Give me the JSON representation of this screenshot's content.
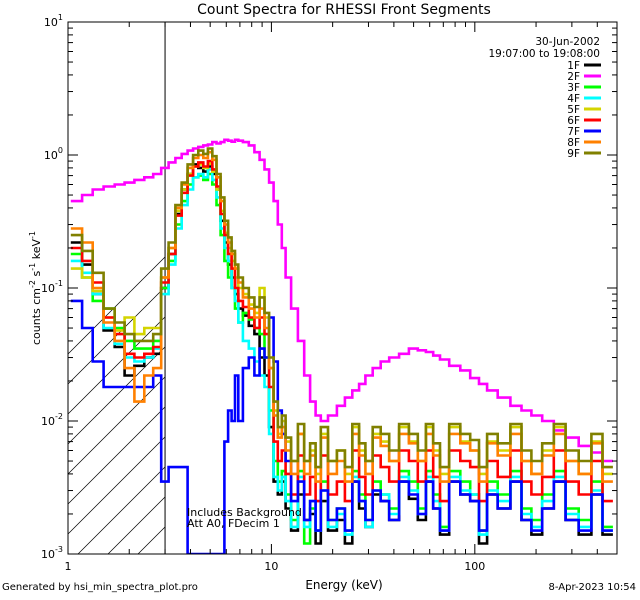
{
  "chart_data": {
    "type": "line",
    "title": "Count Spectra for RHESSI Front Segments",
    "xlabel": "Energy (keV)",
    "ylabel_parts": [
      "counts cm",
      "-2",
      " s",
      "-1",
      " keV",
      "-1"
    ],
    "x_scale": "log",
    "y_scale": "log",
    "xlim": [
      1,
      500
    ],
    "ylim": [
      0.001,
      10
    ],
    "x_ticks": [
      {
        "value": 1,
        "label": "1"
      },
      {
        "value": 10,
        "label": "10"
      },
      {
        "value": 100,
        "label": "100"
      }
    ],
    "y_ticks": [
      {
        "value": 10,
        "base": "10",
        "exp": "1"
      },
      {
        "value": 1,
        "base": "10",
        "exp": "0"
      },
      {
        "value": 0.1,
        "base": "10",
        "exp": "-1"
      },
      {
        "value": 0.01,
        "base": "10",
        "exp": "-2"
      },
      {
        "value": 0.001,
        "base": "10",
        "exp": "-3"
      }
    ],
    "date": "30-Jun-2002",
    "time_range": "19:07:00 to 19:08:00",
    "annotation_lines": [
      "Includes Background",
      "Att A0, FDecim 1"
    ],
    "shaded_region_kev": [
      1,
      3
    ],
    "energies": [
      1.1,
      1.25,
      1.4,
      1.6,
      1.8,
      2.0,
      2.25,
      2.5,
      2.75,
      3.0,
      3.25,
      3.5,
      3.75,
      4.0,
      4.25,
      4.5,
      4.75,
      5.0,
      5.25,
      5.5,
      5.75,
      6.0,
      6.25,
      6.5,
      6.75,
      7.0,
      7.5,
      8.0,
      8.5,
      9.0,
      9.5,
      10.0,
      10.5,
      11.0,
      11.5,
      12.0,
      13.0,
      14.0,
      15.0,
      16.0,
      17.0,
      18.0,
      20.0,
      22.0,
      24.0,
      26.0,
      28.0,
      30.0,
      33.0,
      36.0,
      40.0,
      45.0,
      50.0,
      55.0,
      60.0,
      65.0,
      70.0,
      80.0,
      90.0,
      100.0,
      110.0,
      120.0,
      140.0,
      160.0,
      180.0,
      200.0,
      230.0,
      260.0,
      300.0,
      350.0,
      400.0,
      450.0
    ],
    "series": [
      {
        "name": "1F",
        "color": "#000000",
        "values": [
          0.22,
          0.15,
          0.09,
          0.048,
          0.036,
          0.022,
          0.026,
          0.03,
          0.032,
          0.1,
          0.18,
          0.36,
          0.55,
          0.72,
          0.85,
          0.8,
          0.75,
          0.82,
          0.72,
          0.55,
          0.32,
          0.22,
          0.15,
          0.12,
          0.09,
          0.07,
          0.062,
          0.052,
          0.045,
          0.03,
          0.022,
          0.009,
          0.0035,
          0.0028,
          0.0035,
          0.0022,
          0.0015,
          0.0028,
          0.0018,
          0.002,
          0.0012,
          0.0025,
          0.0015,
          0.0018,
          0.0012,
          0.0035,
          0.0022,
          0.0016,
          0.0028,
          0.0025,
          0.0018,
          0.0035,
          0.0026,
          0.0018,
          0.0035,
          0.0022,
          0.0014,
          0.0035,
          0.0028,
          0.0025,
          0.0012,
          0.0028,
          0.0022,
          0.0035,
          0.0018,
          0.0014,
          0.0022,
          0.0035,
          0.0018,
          0.0014,
          0.0028,
          0.0014
        ]
      },
      {
        "name": "2F",
        "color": "#ff00ff",
        "values": [
          0.45,
          0.5,
          0.55,
          0.58,
          0.6,
          0.62,
          0.65,
          0.68,
          0.72,
          0.8,
          0.88,
          0.95,
          1.02,
          1.08,
          1.12,
          1.15,
          1.18,
          1.2,
          1.25,
          1.22,
          1.25,
          1.3,
          1.28,
          1.26,
          1.3,
          1.28,
          1.25,
          1.18,
          1.05,
          0.92,
          0.78,
          0.62,
          0.45,
          0.3,
          0.2,
          0.12,
          0.07,
          0.04,
          0.022,
          0.014,
          0.011,
          0.01,
          0.011,
          0.013,
          0.015,
          0.017,
          0.019,
          0.022,
          0.025,
          0.028,
          0.03,
          0.032,
          0.035,
          0.034,
          0.033,
          0.031,
          0.029,
          0.026,
          0.024,
          0.021,
          0.019,
          0.017,
          0.015,
          0.013,
          0.012,
          0.011,
          0.01,
          0.0085,
          0.0075,
          0.0065,
          0.0058,
          0.005
        ]
      },
      {
        "name": "3F",
        "color": "#00ff00",
        "values": [
          0.18,
          0.12,
          0.08,
          0.07,
          0.05,
          0.04,
          0.035,
          0.035,
          0.04,
          0.1,
          0.16,
          0.3,
          0.45,
          0.6,
          0.68,
          0.7,
          0.65,
          0.72,
          0.6,
          0.42,
          0.25,
          0.16,
          0.12,
          0.1,
          0.07,
          0.055,
          0.065,
          0.058,
          0.05,
          0.045,
          0.03,
          0.012,
          0.005,
          0.0035,
          0.0042,
          0.0028,
          0.0018,
          0.0042,
          0.0012,
          0.0022,
          0.0015,
          0.0035,
          0.0018,
          0.0022,
          0.0015,
          0.0042,
          0.0028,
          0.0018,
          0.0035,
          0.0028,
          0.0022,
          0.0042,
          0.0035,
          0.0022,
          0.0042,
          0.0028,
          0.0016,
          0.0042,
          0.0035,
          0.0028,
          0.0015,
          0.0035,
          0.0028,
          0.0042,
          0.0022,
          0.0018,
          0.0028,
          0.0042,
          0.0022,
          0.0018,
          0.0035,
          0.0016
        ]
      },
      {
        "name": "4F",
        "color": "#00ffff",
        "values": [
          0.16,
          0.13,
          0.09,
          0.05,
          0.038,
          0.03,
          0.028,
          0.03,
          0.035,
          0.09,
          0.15,
          0.28,
          0.42,
          0.55,
          0.68,
          0.72,
          0.68,
          0.78,
          0.65,
          0.48,
          0.28,
          0.2,
          0.16,
          0.1,
          0.08,
          0.055,
          0.04,
          0.035,
          0.028,
          0.022,
          0.018,
          0.008,
          0.0038,
          0.003,
          0.0038,
          0.0025,
          0.0016,
          0.0038,
          0.0016,
          0.0025,
          0.0015,
          0.003,
          0.0016,
          0.002,
          0.0014,
          0.0038,
          0.0025,
          0.0016,
          0.003,
          0.0028,
          0.002,
          0.0038,
          0.003,
          0.002,
          0.0038,
          0.0025,
          0.0015,
          0.0038,
          0.003,
          0.0028,
          0.0014,
          0.003,
          0.0025,
          0.0038,
          0.002,
          0.0016,
          0.0025,
          0.0038,
          0.002,
          0.0016,
          0.003,
          0.0015
        ]
      },
      {
        "name": "5F",
        "color": "#d4d400",
        "values": [
          0.14,
          0.12,
          0.095,
          0.06,
          0.048,
          0.06,
          0.045,
          0.05,
          0.05,
          0.12,
          0.2,
          0.38,
          0.55,
          0.72,
          0.82,
          0.85,
          0.8,
          0.86,
          0.75,
          0.55,
          0.38,
          0.26,
          0.2,
          0.16,
          0.12,
          0.1,
          0.09,
          0.075,
          0.065,
          0.1,
          0.06,
          0.025,
          0.012,
          0.008,
          0.01,
          0.007,
          0.005,
          0.008,
          0.005,
          0.006,
          0.004,
          0.008,
          0.005,
          0.006,
          0.004,
          0.009,
          0.006,
          0.005,
          0.008,
          0.007,
          0.005,
          0.009,
          0.007,
          0.005,
          0.009,
          0.006,
          0.004,
          0.009,
          0.007,
          0.006,
          0.004,
          0.007,
          0.006,
          0.009,
          0.005,
          0.004,
          0.006,
          0.009,
          0.005,
          0.004,
          0.007,
          0.004
        ]
      },
      {
        "name": "6F",
        "color": "#ff0000",
        "values": [
          0.2,
          0.16,
          0.11,
          0.06,
          0.045,
          0.032,
          0.03,
          0.032,
          0.036,
          0.11,
          0.18,
          0.35,
          0.52,
          0.7,
          0.82,
          0.88,
          0.82,
          0.9,
          0.78,
          0.58,
          0.36,
          0.25,
          0.18,
          0.14,
          0.1,
          0.08,
          0.072,
          0.06,
          0.05,
          0.06,
          0.045,
          0.018,
          0.007,
          0.005,
          0.006,
          0.004,
          0.0028,
          0.0055,
          0.0028,
          0.0038,
          0.0025,
          0.0055,
          0.0028,
          0.0035,
          0.0025,
          0.006,
          0.0038,
          0.0028,
          0.0055,
          0.0045,
          0.0035,
          0.006,
          0.005,
          0.0035,
          0.006,
          0.0038,
          0.0025,
          0.006,
          0.005,
          0.0045,
          0.0025,
          0.005,
          0.0038,
          0.006,
          0.0035,
          0.0028,
          0.0038,
          0.006,
          0.0035,
          0.0028,
          0.005,
          0.0025
        ]
      },
      {
        "name": "7F",
        "color": "#0000ff",
        "values": [
          0.08,
          0.05,
          0.028,
          0.018,
          0.018,
          0.018,
          0.018,
          0.018,
          0.022,
          0.0035,
          0.0045,
          0.0045,
          0.0045,
          0.001,
          0.001,
          0.001,
          0.001,
          0.001,
          0.001,
          0.001,
          0.001,
          0.007,
          0.012,
          0.01,
          0.022,
          0.01,
          0.025,
          0.03,
          0.022,
          0.035,
          0.03,
          0.06,
          0.028,
          0.012,
          0.008,
          0.005,
          0.0025,
          0.0035,
          0.0018,
          0.0025,
          0.0015,
          0.003,
          0.0018,
          0.0022,
          0.0015,
          0.0035,
          0.0025,
          0.0018,
          0.003,
          0.0025,
          0.0018,
          0.0035,
          0.0028,
          0.002,
          0.0035,
          0.0022,
          0.0015,
          0.0035,
          0.0028,
          0.0025,
          0.0015,
          0.0028,
          0.0022,
          0.0035,
          0.0018,
          0.0015,
          0.0022,
          0.0035,
          0.0018,
          0.0015,
          0.0028,
          0.0015
        ]
      },
      {
        "name": "8F",
        "color": "#ff8000",
        "values": [
          0.28,
          0.22,
          0.1,
          0.055,
          0.04,
          0.025,
          0.014,
          0.022,
          0.025,
          0.12,
          0.2,
          0.4,
          0.6,
          0.8,
          0.95,
          1.0,
          0.95,
          1.05,
          0.92,
          0.68,
          0.45,
          0.3,
          0.22,
          0.18,
          0.14,
          0.11,
          0.085,
          0.07,
          0.06,
          0.07,
          0.05,
          0.025,
          0.011,
          0.0075,
          0.009,
          0.006,
          0.004,
          0.008,
          0.004,
          0.0055,
          0.0035,
          0.0075,
          0.004,
          0.005,
          0.0035,
          0.008,
          0.0055,
          0.004,
          0.0075,
          0.0065,
          0.005,
          0.008,
          0.0068,
          0.005,
          0.008,
          0.0055,
          0.0035,
          0.008,
          0.0068,
          0.006,
          0.0035,
          0.0068,
          0.0055,
          0.008,
          0.005,
          0.004,
          0.0055,
          0.008,
          0.005,
          0.004,
          0.0068,
          0.0035
        ]
      },
      {
        "name": "9F",
        "color": "#808000",
        "values": [
          0.25,
          0.19,
          0.13,
          0.07,
          0.055,
          0.045,
          0.04,
          0.04,
          0.045,
          0.14,
          0.22,
          0.42,
          0.62,
          0.85,
          1.0,
          1.08,
          1.02,
          1.12,
          0.98,
          0.72,
          0.48,
          0.32,
          0.24,
          0.19,
          0.15,
          0.12,
          0.1,
          0.085,
          0.072,
          0.085,
          0.065,
          0.03,
          0.014,
          0.009,
          0.011,
          0.0075,
          0.005,
          0.0095,
          0.005,
          0.0068,
          0.0045,
          0.009,
          0.005,
          0.006,
          0.0045,
          0.0095,
          0.0068,
          0.005,
          0.009,
          0.008,
          0.006,
          0.0095,
          0.008,
          0.006,
          0.0095,
          0.0068,
          0.0045,
          0.0095,
          0.008,
          0.0072,
          0.0045,
          0.008,
          0.0068,
          0.0095,
          0.006,
          0.005,
          0.0068,
          0.0095,
          0.006,
          0.005,
          0.008,
          0.0045
        ]
      }
    ]
  },
  "footer": {
    "generated_by": "Generated by hsi_min_spectra_plot.pro",
    "timestamp": "8-Apr-2023 10:54"
  }
}
